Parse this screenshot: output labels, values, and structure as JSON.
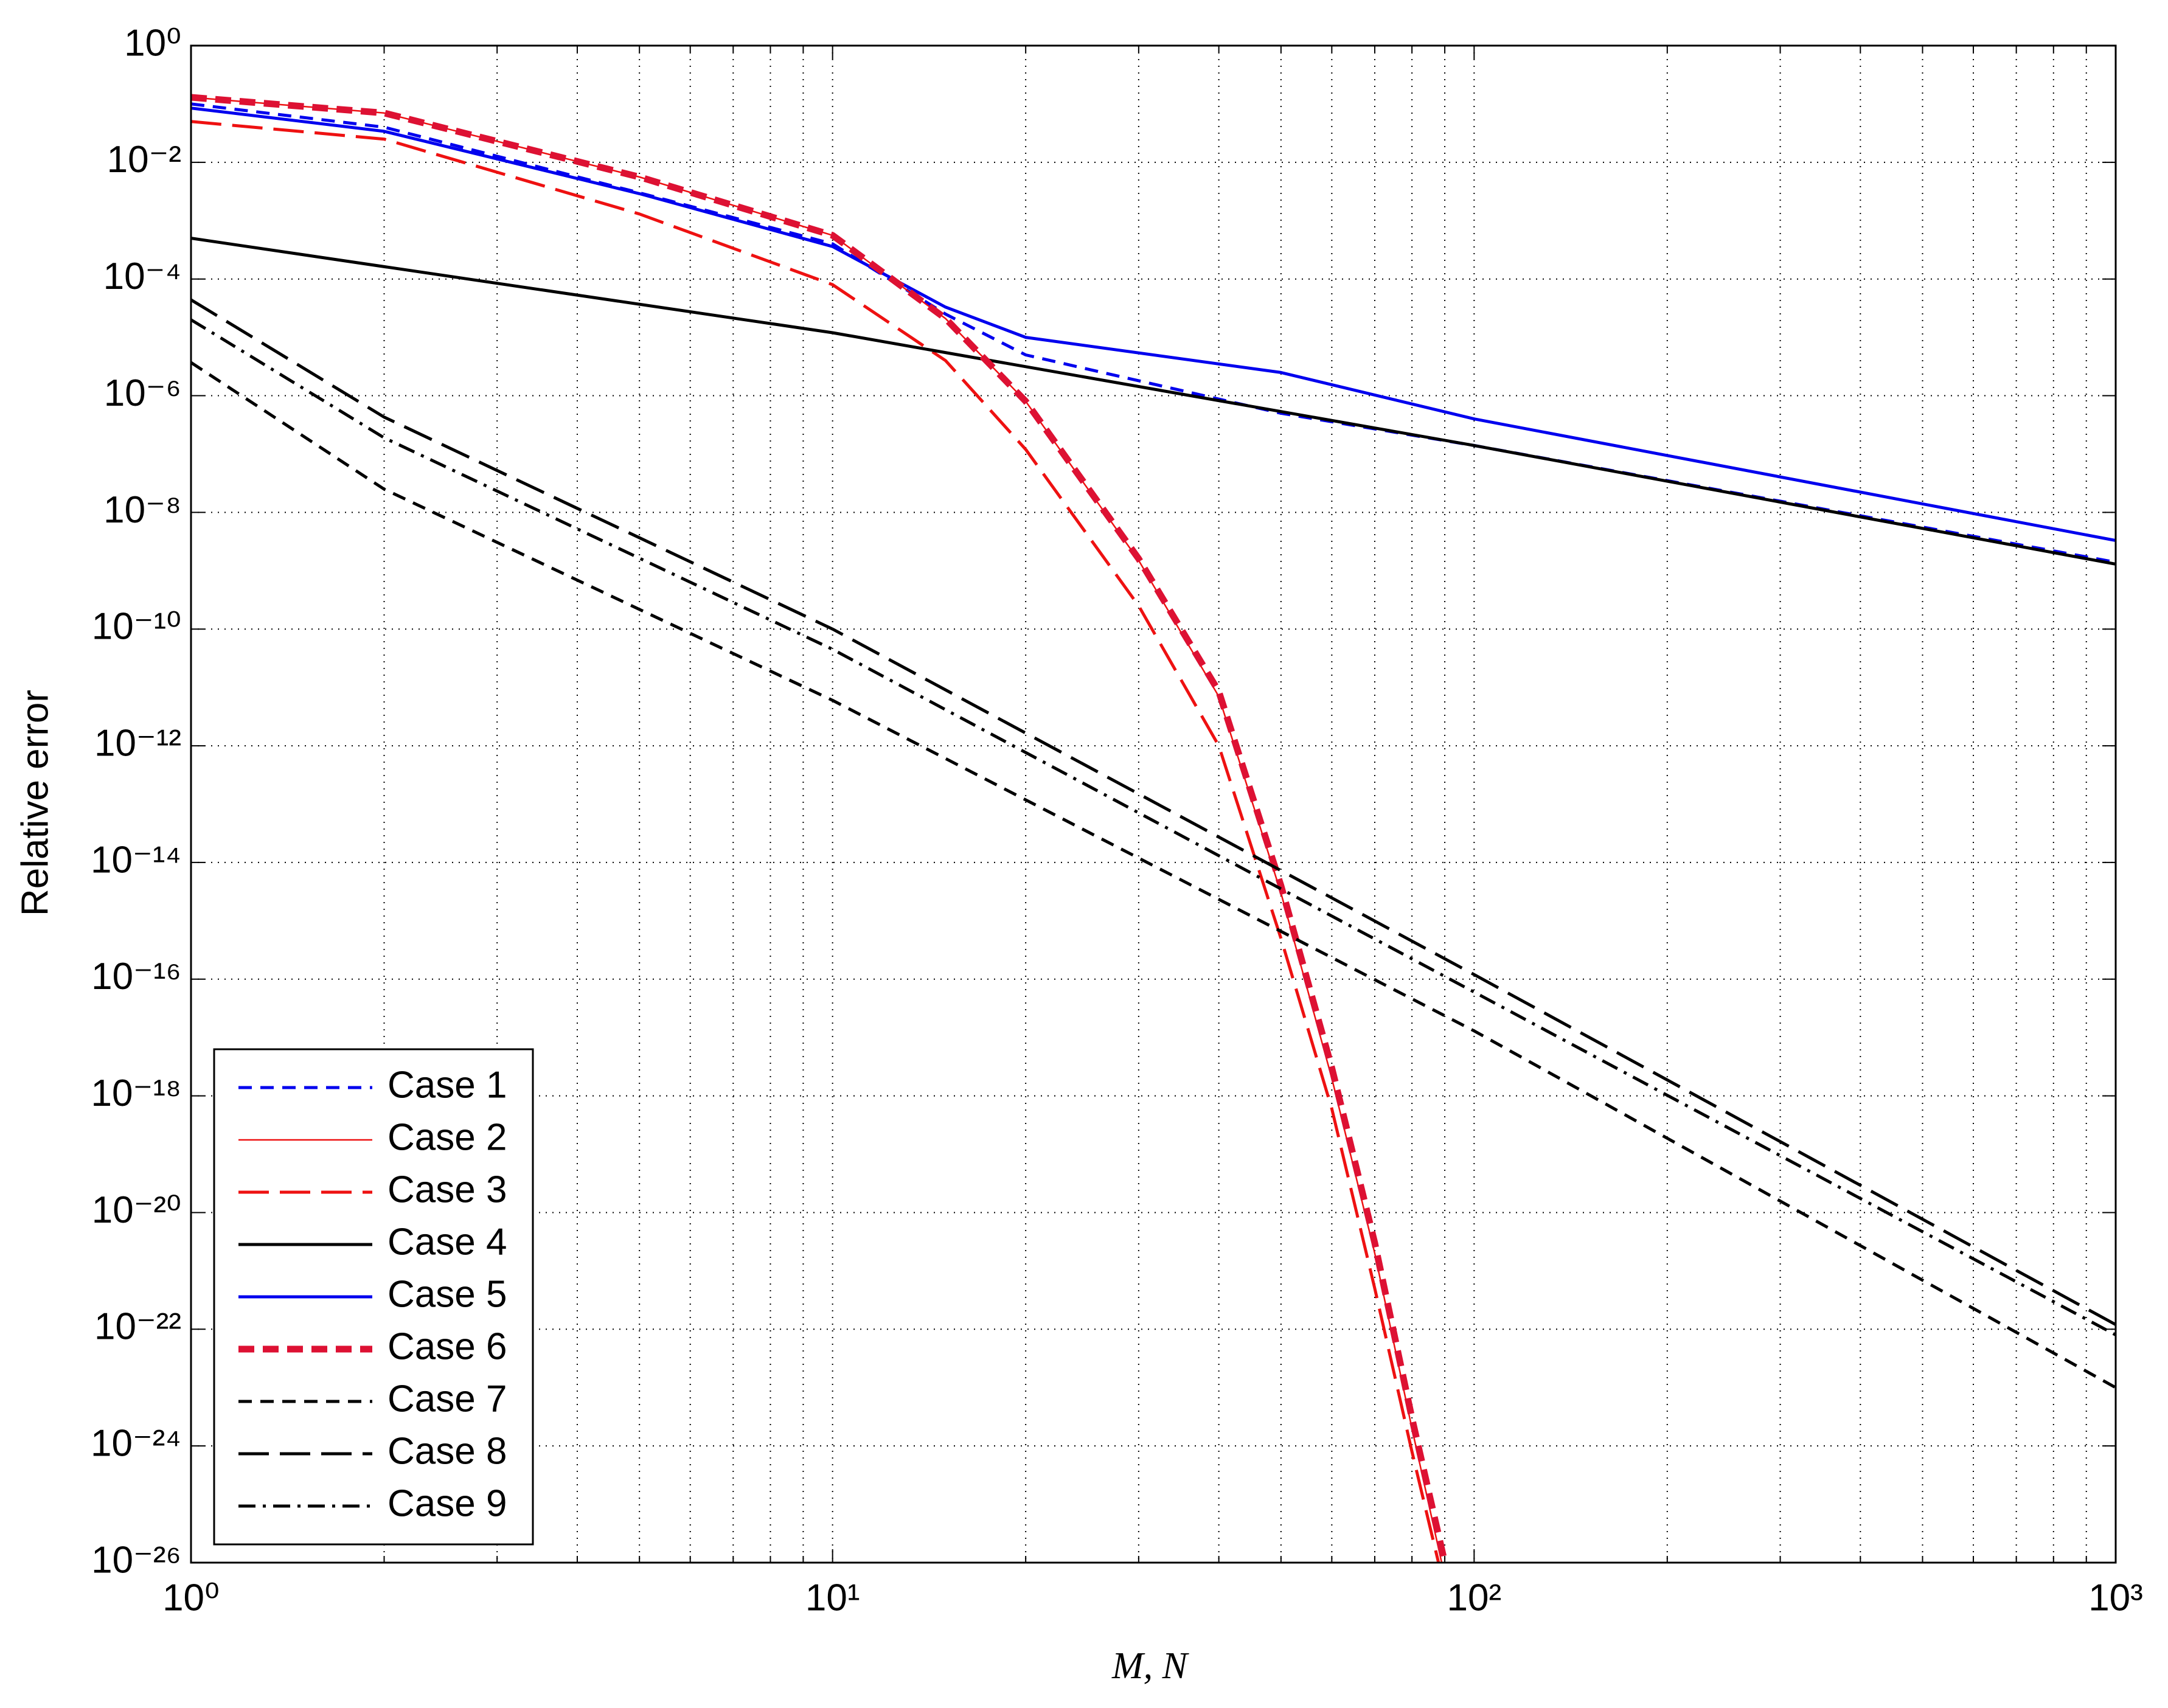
{
  "chart_data": {
    "type": "line",
    "xlabel": "M, N",
    "ylabel": "Relative error",
    "xscale": "log",
    "yscale": "log",
    "grid": true,
    "legend": "lower left",
    "xlim": [
      1,
      1000
    ],
    "ylim": [
      1e-26,
      1
    ],
    "xticks": [
      {
        "value": 1,
        "label": "10⁰"
      },
      {
        "value": 10,
        "label": "10¹"
      },
      {
        "value": 100,
        "label": "10²"
      },
      {
        "value": 1000,
        "label": "10³"
      }
    ],
    "xminorticks": [
      2,
      3,
      4,
      5,
      6,
      7,
      8,
      9,
      20,
      30,
      40,
      50,
      60,
      70,
      80,
      90,
      200,
      300,
      400,
      500,
      600,
      700,
      800,
      900
    ],
    "yticks": [
      {
        "value": 1,
        "label": "10⁰"
      },
      {
        "value": 0.01,
        "label": "10⁻²"
      },
      {
        "value": 0.0001,
        "label": "10⁻⁴"
      },
      {
        "value": 1e-06,
        "label": "10⁻⁶"
      },
      {
        "value": 1e-08,
        "label": "10⁻⁸"
      },
      {
        "value": 1e-10,
        "label": "10⁻¹⁰"
      },
      {
        "value": 1e-12,
        "label": "10⁻¹²"
      },
      {
        "value": 1e-14,
        "label": "10⁻¹⁴"
      },
      {
        "value": 1e-16,
        "label": "10⁻¹⁶"
      },
      {
        "value": 1e-18,
        "label": "10⁻¹⁸"
      },
      {
        "value": 1e-20,
        "label": "10⁻²⁰"
      },
      {
        "value": 1e-22,
        "label": "10⁻²²"
      },
      {
        "value": 1e-24,
        "label": "10⁻²⁴"
      },
      {
        "value": 1e-26,
        "label": "10⁻²⁶"
      }
    ],
    "series": [
      {
        "name": "Case 1",
        "color": "#0000ee",
        "dash": "dashed",
        "width": "normal",
        "x": [
          1,
          2,
          5,
          10,
          15,
          20,
          50,
          100,
          1000
        ],
        "values": [
          0.1,
          0.04,
          0.003,
          0.0004,
          2.5e-05,
          5e-06,
          5e-07,
          1.4e-07,
          1.4e-09
        ]
      },
      {
        "name": "Case 2",
        "color": "#ee1111",
        "dash": "solid",
        "width": "thin",
        "x": [
          1,
          2,
          5,
          10,
          15,
          20,
          30,
          40,
          50,
          60,
          70,
          80,
          89
        ],
        "values": [
          0.13,
          0.07,
          0.0056,
          0.00056,
          2.1e-05,
          8e-07,
          1.5e-09,
          7e-12,
          3e-15,
          2e-18,
          2e-21,
          2e-24,
          1e-26
        ]
      },
      {
        "name": "Case 3",
        "color": "#ee1111",
        "dash": "longdash",
        "width": "normal",
        "x": [
          1,
          2,
          5,
          10,
          15,
          20,
          30,
          40,
          50,
          60,
          70,
          80,
          88
        ],
        "values": [
          0.05,
          0.025,
          0.0013,
          8e-05,
          4e-06,
          1.2e-07,
          2.5e-10,
          1e-12,
          5e-16,
          6e-19,
          5e-22,
          8e-25,
          1e-26
        ]
      },
      {
        "name": "Case 4",
        "color": "#000000",
        "dash": "solid",
        "width": "normal",
        "x": [
          1,
          10,
          100,
          1000
        ],
        "values": [
          0.0005,
          1.2e-05,
          1.4e-07,
          1.3e-09
        ]
      },
      {
        "name": "Case 5",
        "color": "#0000ee",
        "dash": "solid",
        "width": "normal",
        "x": [
          1,
          2,
          5,
          10,
          15,
          20,
          50,
          100,
          1000
        ],
        "values": [
          0.085,
          0.034,
          0.0029,
          0.00036,
          3.3e-05,
          1e-05,
          2.5e-06,
          4e-07,
          3.3e-09
        ]
      },
      {
        "name": "Case 6",
        "color": "#dd1133",
        "dash": "dashed",
        "width": "thick",
        "x": [
          1,
          2,
          5,
          10,
          15,
          20,
          30,
          40,
          50,
          60,
          70,
          80,
          90
        ],
        "values": [
          0.13,
          0.07,
          0.0056,
          0.00056,
          2.1e-05,
          8e-07,
          1.6e-09,
          8.5e-12,
          4e-15,
          3e-18,
          3e-21,
          3e-24,
          1e-26
        ]
      },
      {
        "name": "Case 7",
        "color": "#000000",
        "dash": "dashed",
        "width": "normal",
        "x": [
          1,
          2,
          10,
          100,
          1000
        ],
        "values": [
          3.7e-06,
          2.5e-08,
          6e-12,
          1.3e-17,
          1e-23
        ]
      },
      {
        "name": "Case 8",
        "color": "#000000",
        "dash": "longdash",
        "width": "normal",
        "x": [
          1,
          2,
          10,
          100,
          1000
        ],
        "values": [
          4.4e-05,
          4.3e-07,
          1e-10,
          1.2e-16,
          1.2e-22
        ]
      },
      {
        "name": "Case 9",
        "color": "#000000",
        "dash": "dashdot",
        "width": "normal",
        "x": [
          1,
          2,
          10,
          100,
          1000
        ],
        "values": [
          2e-05,
          1.9e-07,
          4.5e-11,
          6e-17,
          8e-23
        ]
      }
    ]
  }
}
